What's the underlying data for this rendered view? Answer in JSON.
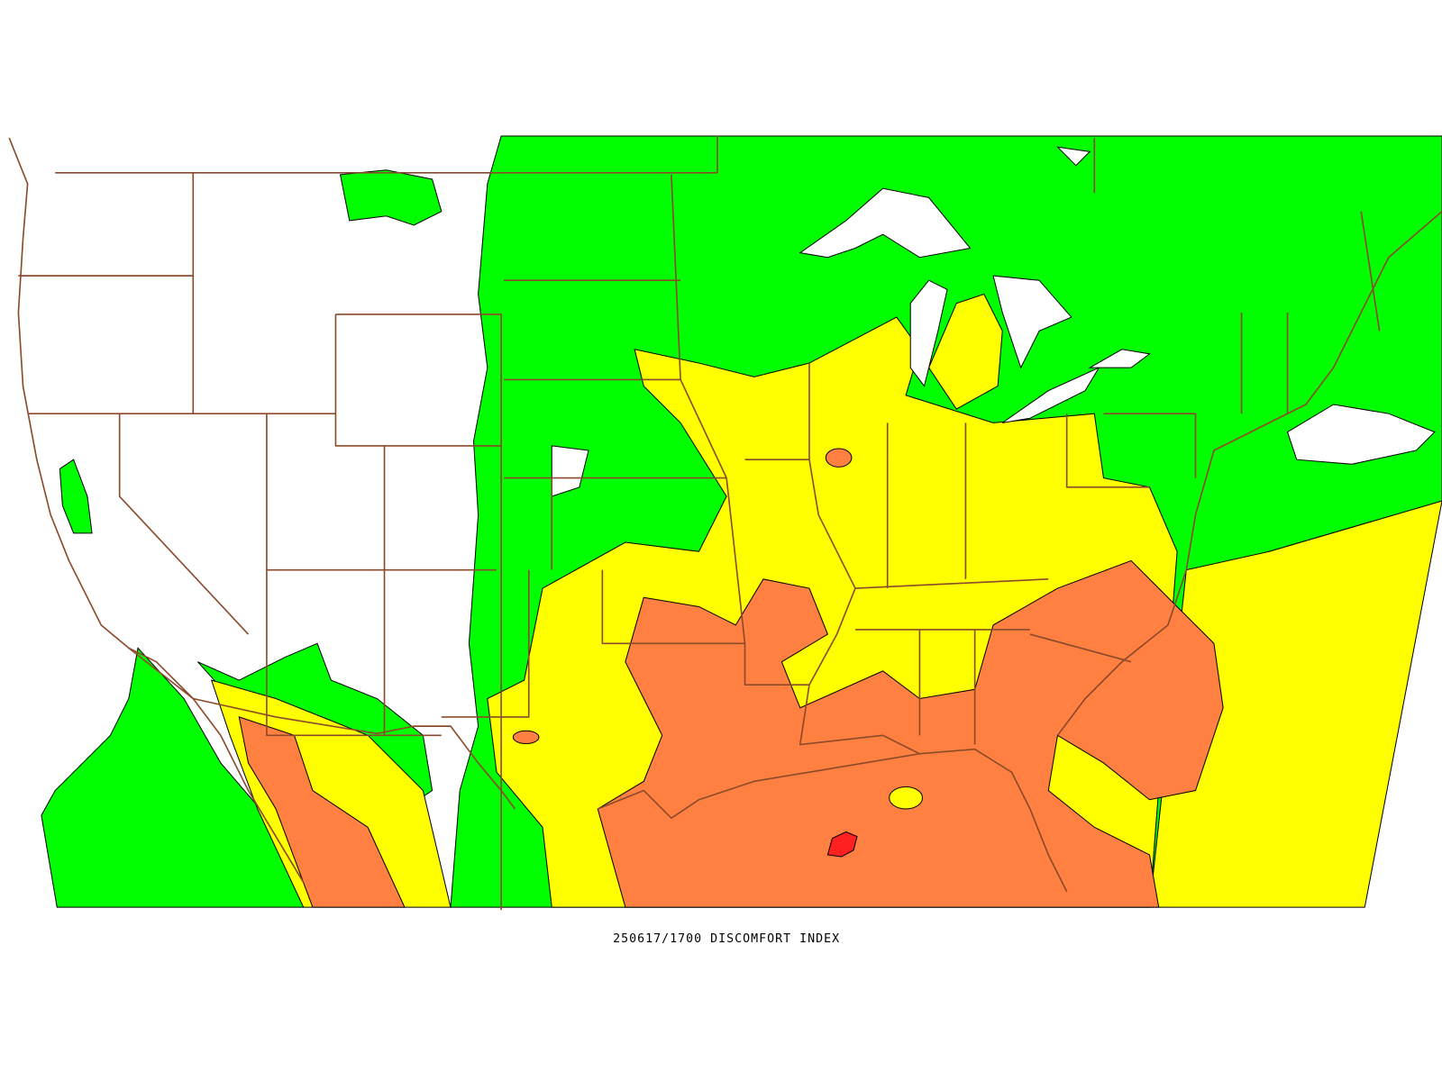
{
  "map": {
    "caption": "250617/1700 DISCOMFORT INDEX"
  }
}
